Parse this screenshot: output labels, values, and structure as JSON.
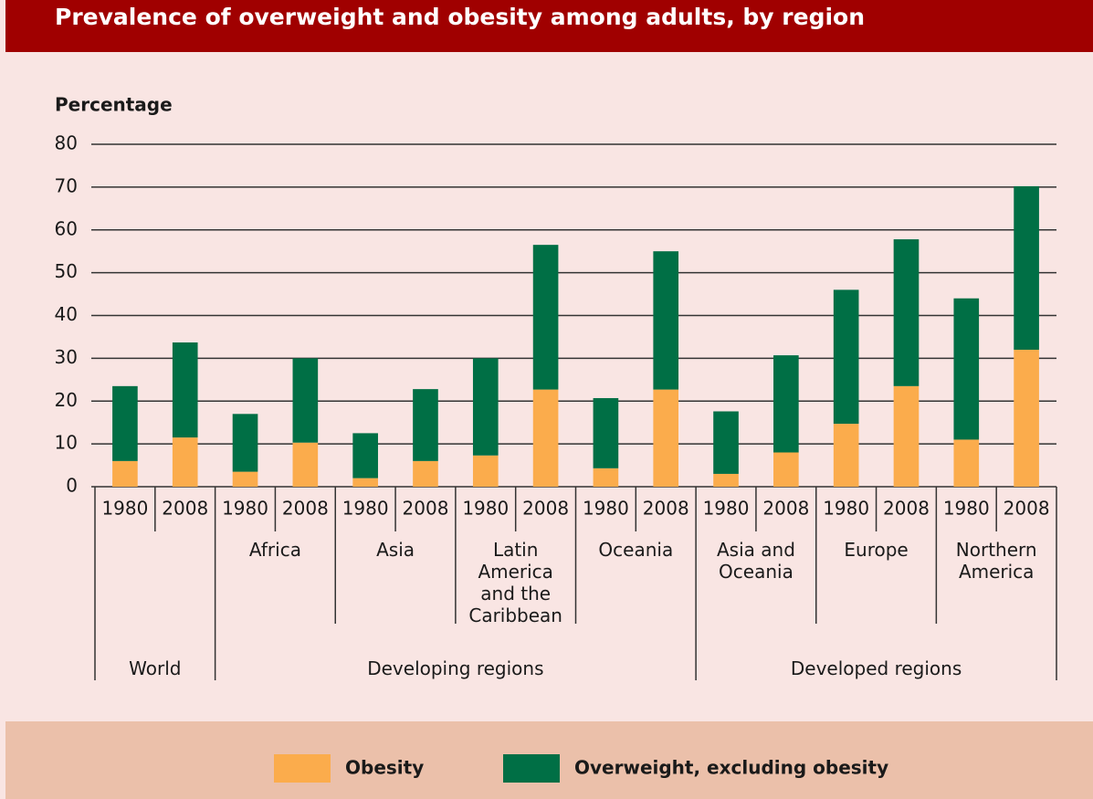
{
  "chart_data": {
    "type": "stacked_bar",
    "title": "Prevalence of overweight and obesity among adults, by region",
    "y_label": "Percentage",
    "ylim": [
      0,
      80
    ],
    "yticks": [
      0,
      10,
      20,
      30,
      40,
      50,
      60,
      70,
      80
    ],
    "grid": true,
    "groups": [
      {
        "name": "World",
        "regions": [
          {
            "name": null,
            "years": [
              "1980",
              "2008"
            ]
          }
        ]
      },
      {
        "name": "Developing regions",
        "regions": [
          {
            "name": "Africa",
            "years": [
              "1980",
              "2008"
            ]
          },
          {
            "name": "Asia",
            "years": [
              "1980",
              "2008"
            ]
          },
          {
            "name": "Latin America and the Caribbean",
            "years": [
              "1980",
              "2008"
            ]
          },
          {
            "name": "Oceania",
            "years": [
              "1980",
              "2008"
            ]
          }
        ]
      },
      {
        "name": "Developed regions",
        "regions": [
          {
            "name": "Asia and Oceania",
            "years": [
              "1980",
              "2008"
            ]
          },
          {
            "name": "Europe",
            "years": [
              "1980",
              "2008"
            ]
          },
          {
            "name": "Northern America",
            "years": [
              "1980",
              "2008"
            ]
          }
        ]
      }
    ],
    "series": [
      {
        "name": "Obesity",
        "color": "#fbac4c",
        "values": [
          6,
          11.5,
          3.5,
          10.3,
          2,
          6,
          7.3,
          22.7,
          4.3,
          22.7,
          3,
          8,
          14.7,
          23.5,
          11,
          32
        ]
      },
      {
        "name": "Overweight, excluding obesity",
        "color": "#006f45",
        "values": [
          17.5,
          22.2,
          13.5,
          19.7,
          10.5,
          16.8,
          22.7,
          33.8,
          16.4,
          32.3,
          14.6,
          22.7,
          31.3,
          34.3,
          33,
          38.2
        ]
      }
    ]
  }
}
